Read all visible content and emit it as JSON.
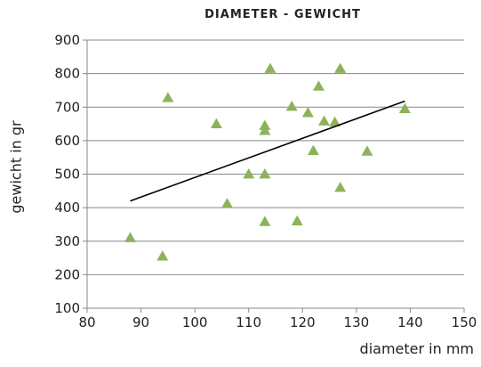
{
  "chart_data": {
    "type": "scatter",
    "title": "DIAMETER - GEWICHT",
    "xlabel": "diameter in mm",
    "ylabel": "gewicht in gr",
    "xlim": [
      80,
      150
    ],
    "ylim": [
      100,
      900
    ],
    "xticks": [
      80,
      90,
      100,
      110,
      120,
      130,
      140,
      150
    ],
    "yticks": [
      100,
      200,
      300,
      400,
      500,
      600,
      700,
      800,
      900
    ],
    "grid": "horizontal",
    "marker": "triangle",
    "marker_color": "#8db35a",
    "trendline": {
      "x": [
        88,
        139
      ],
      "y": [
        420,
        718
      ],
      "color": "#000000"
    },
    "series": [
      {
        "points": [
          [
            88,
            310
          ],
          [
            94,
            255
          ],
          [
            95,
            728
          ],
          [
            104,
            650
          ],
          [
            106,
            412
          ],
          [
            110,
            500
          ],
          [
            113,
            500
          ],
          [
            113,
            358
          ],
          [
            113,
            645
          ],
          [
            113,
            630
          ],
          [
            114,
            815
          ],
          [
            118,
            702
          ],
          [
            119,
            360
          ],
          [
            121,
            683
          ],
          [
            122,
            570
          ],
          [
            123,
            762
          ],
          [
            124,
            658
          ],
          [
            126,
            655
          ],
          [
            127,
            815
          ],
          [
            127,
            460
          ],
          [
            132,
            568
          ],
          [
            139,
            695
          ]
        ]
      }
    ]
  }
}
